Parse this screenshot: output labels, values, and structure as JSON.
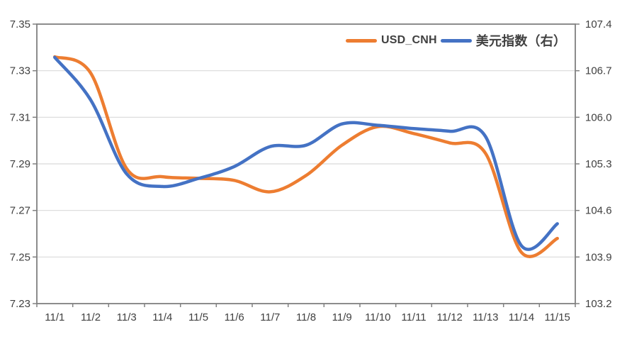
{
  "chart_data": {
    "type": "line",
    "title": "",
    "categories": [
      "11/1",
      "11/2",
      "11/3",
      "11/4",
      "11/5",
      "11/6",
      "11/7",
      "11/8",
      "11/9",
      "11/10",
      "11/11",
      "11/12",
      "11/13",
      "11/14",
      "11/15"
    ],
    "series": [
      {
        "name": "USD_CNH",
        "axis": "left",
        "color": "#ED7D31",
        "values": [
          7.336,
          7.329,
          7.288,
          7.2845,
          7.2838,
          7.2829,
          7.278,
          7.285,
          7.298,
          7.306,
          7.303,
          7.299,
          7.2945,
          7.252,
          7.258
        ]
      },
      {
        "name": "美元指数（右）",
        "axis": "right",
        "color": "#4472C4",
        "values": [
          106.9,
          106.26,
          105.15,
          104.96,
          105.08,
          105.26,
          105.56,
          105.58,
          105.9,
          105.88,
          105.83,
          105.79,
          105.71,
          104.07,
          104.4
        ]
      }
    ],
    "left_axis": {
      "min": 7.23,
      "max": 7.35,
      "tick_labels": [
        "7.35",
        "7.33",
        "7.31",
        "7.29",
        "7.27",
        "7.25",
        "7.23"
      ]
    },
    "right_axis": {
      "min": 103.2,
      "max": 107.4,
      "tick_labels": [
        "107.4",
        "106.7",
        "106.0",
        "105.3",
        "104.6",
        "103.9",
        "103.2"
      ]
    },
    "grid": true,
    "smooth": true,
    "legend_position": "top",
    "line_width": 4.5
  },
  "colors": {
    "orange": "#ED7D31",
    "blue": "#4472C4",
    "gridline": "#D9D9D9",
    "axis": "#808080",
    "tick_label": "#404040",
    "background": "#FFFFFF"
  }
}
